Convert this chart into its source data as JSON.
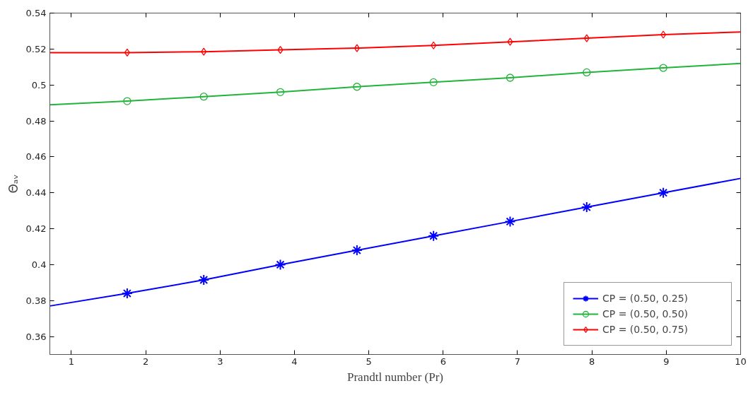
{
  "chart_data": {
    "type": "line",
    "xlabel": "Prandtl number (Pr)",
    "ylabel": "Θₐᵥ",
    "xlim": [
      0.71,
      10
    ],
    "ylim": [
      0.35,
      0.54
    ],
    "xticks": [
      1,
      2,
      3,
      4,
      5,
      6,
      7,
      8,
      9,
      10
    ],
    "yticks": [
      0.36,
      0.38,
      0.4,
      0.42,
      0.44,
      0.46,
      0.48,
      0.5,
      0.52,
      0.54
    ],
    "grid": false,
    "legend": "bottom right",
    "line_style": "solid",
    "series": [
      {
        "color": "#0000ff",
        "marker": "none",
        "x": [
          0.71,
          1.75,
          2.78,
          3.81,
          4.84,
          5.87,
          6.9,
          7.93,
          8.96,
          10
        ],
        "values": [
          0.377,
          0.384,
          0.3915,
          0.4,
          0.408,
          0.416,
          0.424,
          0.432,
          0.44,
          0.448
        ]
      },
      {
        "color": "#22b33a",
        "marker": "none",
        "x": [
          0.71,
          1.75,
          2.78,
          3.81,
          4.84,
          5.87,
          6.9,
          7.93,
          8.96,
          10
        ],
        "values": [
          0.489,
          0.491,
          0.4935,
          0.496,
          0.499,
          0.5015,
          0.504,
          0.507,
          0.5095,
          0.512
        ]
      },
      {
        "color": "#ff0000",
        "marker": "none",
        "x": [
          0.71,
          1.75,
          2.78,
          3.81,
          4.84,
          5.87,
          6.9,
          7.93,
          8.96,
          10
        ],
        "values": [
          0.518,
          0.518,
          0.5185,
          0.5195,
          0.5205,
          0.522,
          0.524,
          0.526,
          0.528,
          0.5295
        ]
      },
      {
        "type": "scatter",
        "name": "CP = (0.50, 0.25)",
        "color": "#0000ff",
        "marker": "cross",
        "x": [
          1.75,
          2.78,
          3.81,
          4.84,
          5.87,
          6.9,
          7.93,
          8.96
        ],
        "values": [
          0.384,
          0.3915,
          0.4,
          0.408,
          0.416,
          0.424,
          0.432,
          0.44
        ]
      },
      {
        "type": "scatter",
        "name": "CP = (0.50, 0.50)",
        "color": "#22b33a",
        "marker": "circle",
        "x": [
          1.75,
          2.78,
          3.81,
          4.84,
          5.87,
          6.9,
          7.93,
          8.96
        ],
        "values": [
          0.491,
          0.4935,
          0.496,
          0.499,
          0.5015,
          0.504,
          0.507,
          0.5095
        ]
      },
      {
        "type": "scatter",
        "name": "CP = (0.50, 0.75)",
        "color": "#ff0000",
        "marker": "diamond",
        "x": [
          1.75,
          2.78,
          3.81,
          4.84,
          5.87,
          6.9,
          7.93,
          8.96
        ],
        "values": [
          0.518,
          0.5185,
          0.5195,
          0.5205,
          0.522,
          0.524,
          0.526,
          0.528
        ]
      }
    ]
  }
}
